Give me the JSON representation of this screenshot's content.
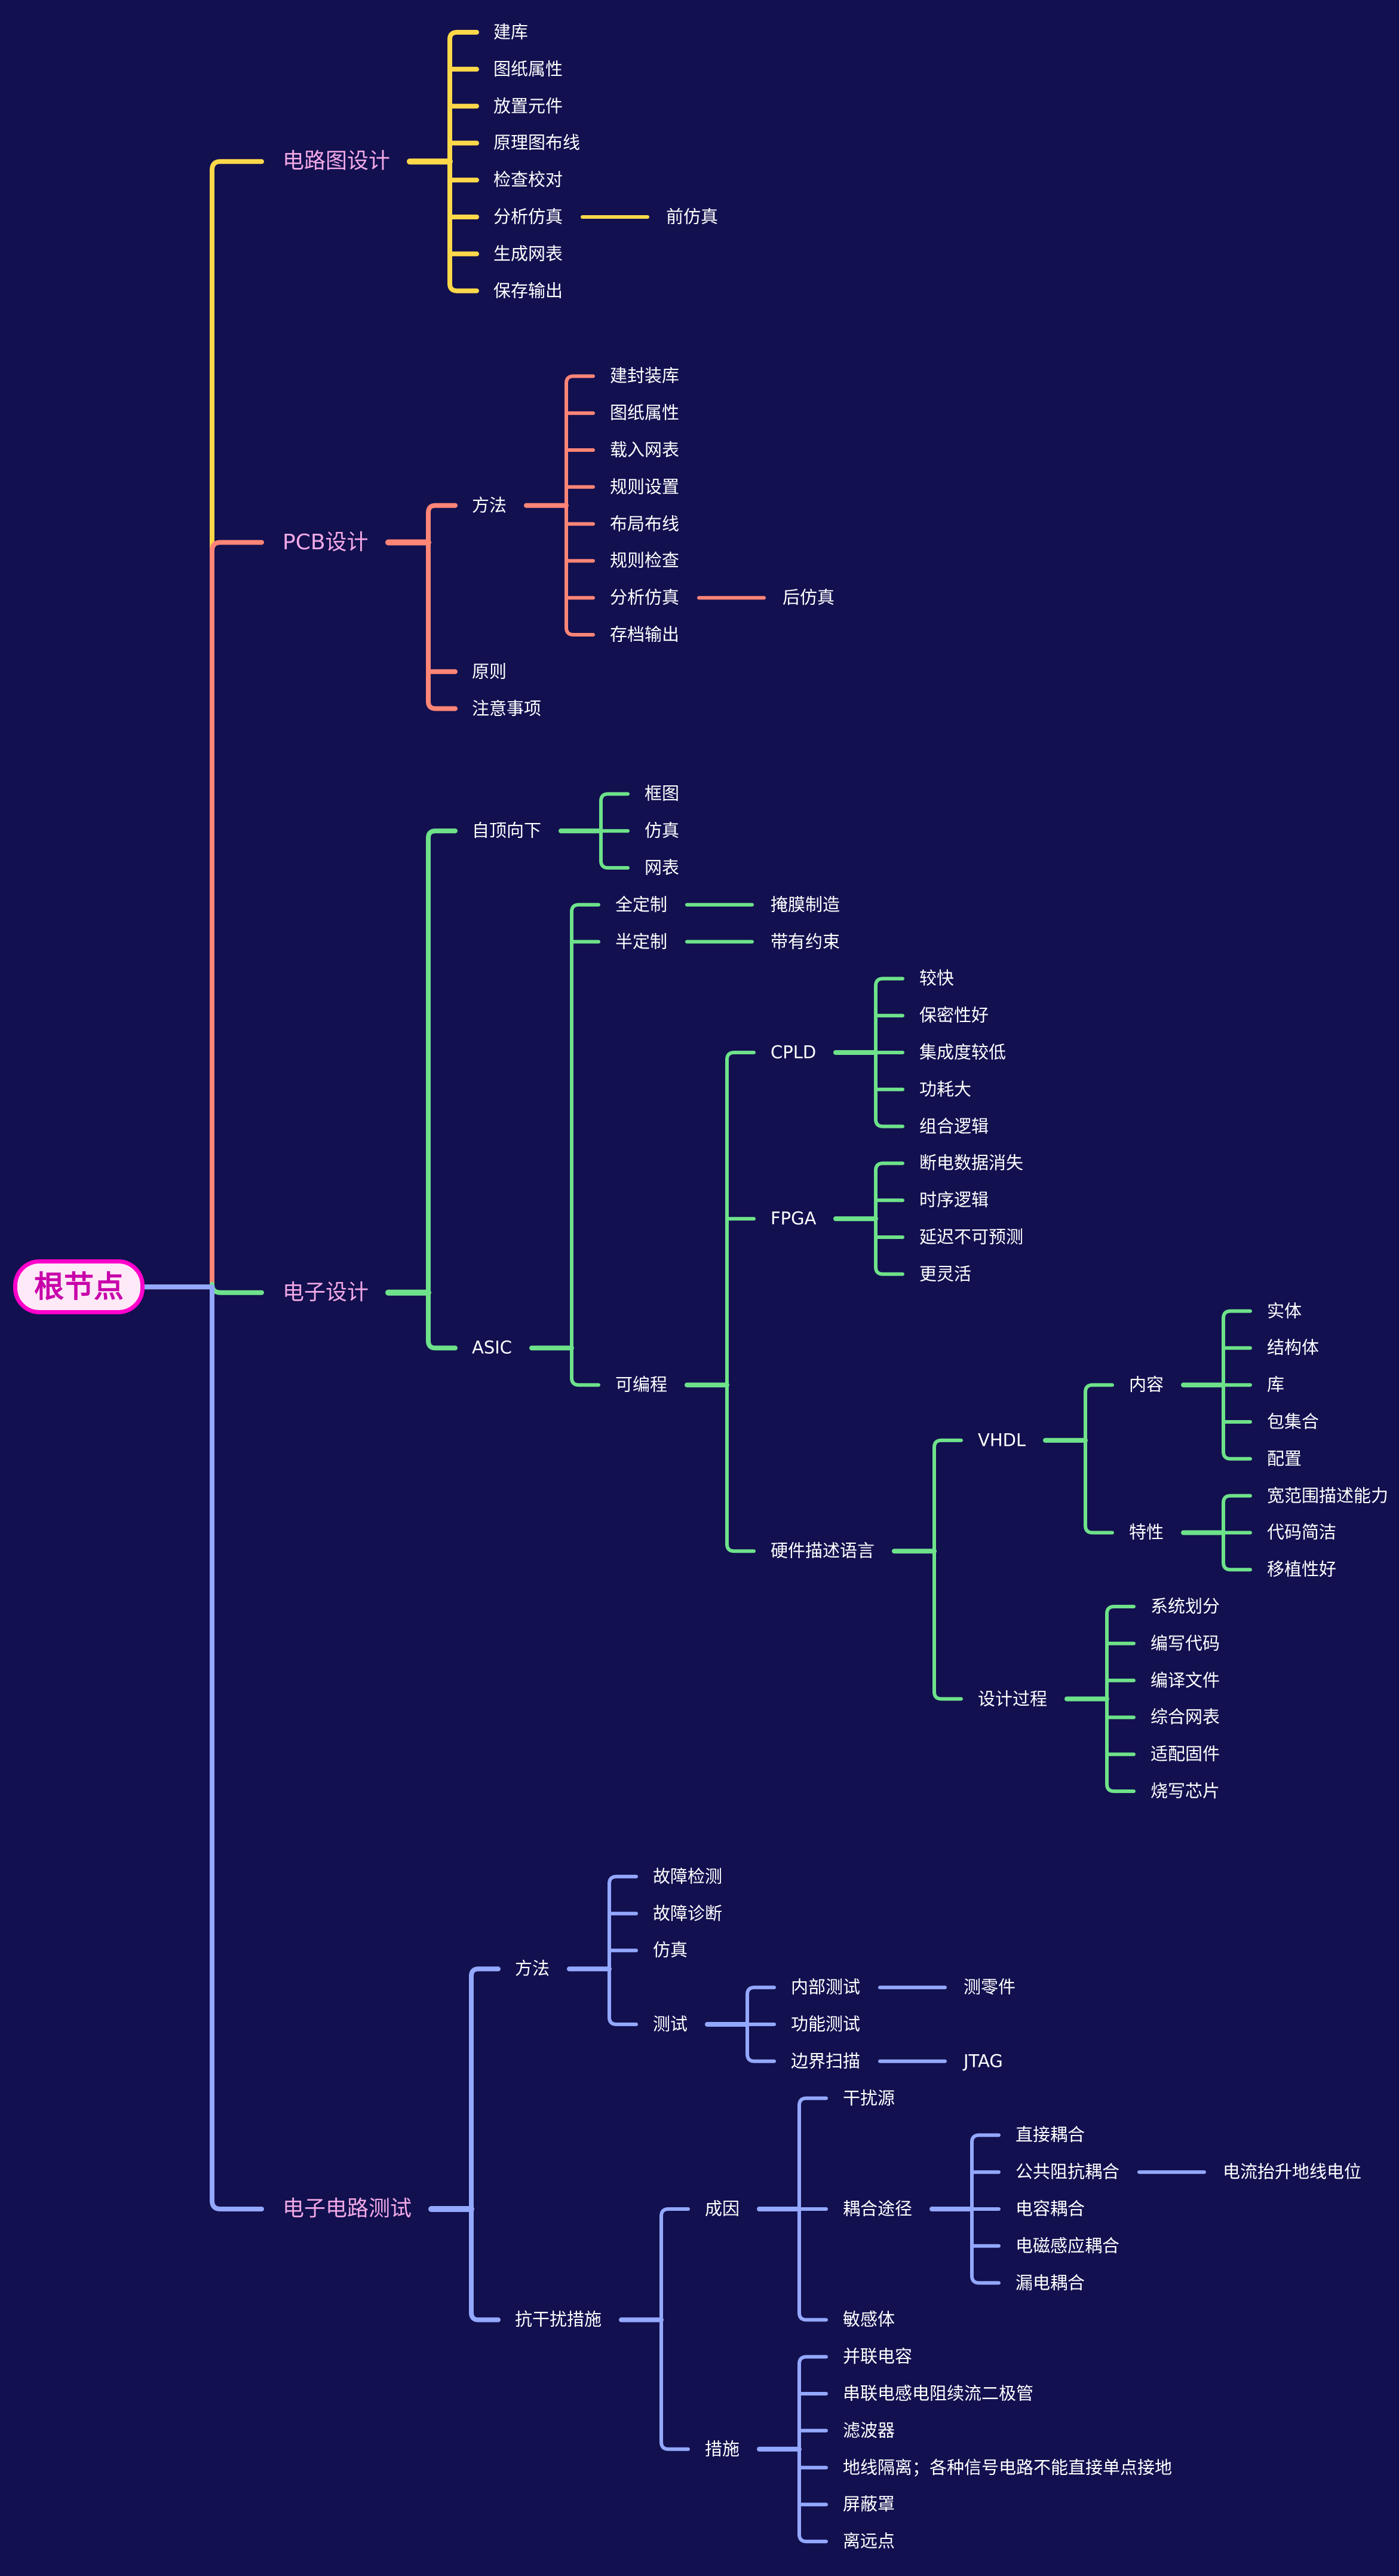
{
  "background": "#12104f",
  "root_colors": {
    "fill": "#fde9f7",
    "border": "#ff00cc",
    "text": "#c800aa"
  },
  "tree": {
    "label": "根节点",
    "children": [
      {
        "label": "电路图设计",
        "color": "#ffd84a",
        "children": [
          {
            "label": "建库"
          },
          {
            "label": "图纸属性"
          },
          {
            "label": "放置元件"
          },
          {
            "label": "原理图布线"
          },
          {
            "label": "检查校对"
          },
          {
            "label": "分析仿真",
            "children": [
              {
                "label": "前仿真"
              }
            ]
          },
          {
            "label": "生成网表"
          },
          {
            "label": "保存输出"
          }
        ]
      },
      {
        "label": "PCB设计",
        "color": "#ff8577",
        "children": [
          {
            "label": "方法",
            "children": [
              {
                "label": "建封装库"
              },
              {
                "label": "图纸属性"
              },
              {
                "label": "载入网表"
              },
              {
                "label": "规则设置"
              },
              {
                "label": "布局布线"
              },
              {
                "label": "规则检查"
              },
              {
                "label": "分析仿真",
                "children": [
                  {
                    "label": "后仿真"
                  }
                ]
              },
              {
                "label": "存档输出"
              }
            ]
          },
          {
            "label": "原则"
          },
          {
            "label": "注意事项"
          }
        ]
      },
      {
        "label": "电子设计",
        "color": "#6ee28a",
        "children": [
          {
            "label": "自顶向下",
            "children": [
              {
                "label": "框图"
              },
              {
                "label": "仿真"
              },
              {
                "label": "网表"
              }
            ]
          },
          {
            "label": "ASIC",
            "children": [
              {
                "label": "全定制",
                "children": [
                  {
                    "label": "掩膜制造"
                  }
                ]
              },
              {
                "label": "半定制",
                "children": [
                  {
                    "label": "带有约束"
                  }
                ]
              },
              {
                "label": "可编程",
                "children": [
                  {
                    "label": "CPLD",
                    "children": [
                      {
                        "label": "较快"
                      },
                      {
                        "label": "保密性好"
                      },
                      {
                        "label": "集成度较低"
                      },
                      {
                        "label": "功耗大"
                      },
                      {
                        "label": "组合逻辑"
                      }
                    ]
                  },
                  {
                    "label": "FPGA",
                    "children": [
                      {
                        "label": "断电数据消失"
                      },
                      {
                        "label": "时序逻辑"
                      },
                      {
                        "label": "延迟不可预测"
                      },
                      {
                        "label": "更灵活"
                      }
                    ]
                  },
                  {
                    "label": "硬件描述语言",
                    "children": [
                      {
                        "label": "VHDL",
                        "children": [
                          {
                            "label": "内容",
                            "children": [
                              {
                                "label": "实体"
                              },
                              {
                                "label": "结构体"
                              },
                              {
                                "label": "库"
                              },
                              {
                                "label": "包集合"
                              },
                              {
                                "label": "配置"
                              }
                            ]
                          },
                          {
                            "label": "特性",
                            "children": [
                              {
                                "label": "宽范围描述能力"
                              },
                              {
                                "label": "代码简洁"
                              },
                              {
                                "label": "移植性好"
                              }
                            ]
                          }
                        ]
                      },
                      {
                        "label": "设计过程",
                        "children": [
                          {
                            "label": "系统划分"
                          },
                          {
                            "label": "编写代码"
                          },
                          {
                            "label": "编译文件"
                          },
                          {
                            "label": "综合网表"
                          },
                          {
                            "label": "适配固件"
                          },
                          {
                            "label": "烧写芯片"
                          }
                        ]
                      }
                    ]
                  }
                ]
              }
            ]
          }
        ]
      },
      {
        "label": "电子电路测试",
        "color": "#94a8ff",
        "children": [
          {
            "label": "方法",
            "children": [
              {
                "label": "故障检测"
              },
              {
                "label": "故障诊断"
              },
              {
                "label": "仿真"
              },
              {
                "label": "测试",
                "children": [
                  {
                    "label": "内部测试",
                    "children": [
                      {
                        "label": "测零件"
                      }
                    ]
                  },
                  {
                    "label": "功能测试"
                  },
                  {
                    "label": "边界扫描",
                    "children": [
                      {
                        "label": "JTAG"
                      }
                    ]
                  }
                ]
              }
            ]
          },
          {
            "label": "抗干扰措施",
            "children": [
              {
                "label": "成因",
                "children": [
                  {
                    "label": "干扰源"
                  },
                  {
                    "label": "耦合途径",
                    "children": [
                      {
                        "label": "直接耦合"
                      },
                      {
                        "label": "公共阻抗耦合",
                        "children": [
                          {
                            "label": "电流抬升地线电位"
                          }
                        ]
                      },
                      {
                        "label": "电容耦合"
                      },
                      {
                        "label": "电磁感应耦合"
                      },
                      {
                        "label": "漏电耦合"
                      }
                    ]
                  },
                  {
                    "label": "敏感体"
                  }
                ]
              },
              {
                "label": "措施",
                "children": [
                  {
                    "label": "并联电容"
                  },
                  {
                    "label": "串联电感电阻续流二极管"
                  },
                  {
                    "label": "滤波器"
                  },
                  {
                    "label": "地线隔离；各种信号电路不能直接单点接地"
                  },
                  {
                    "label": "屏蔽罩"
                  },
                  {
                    "label": "离远点"
                  }
                ]
              }
            ]
          }
        ]
      }
    ]
  }
}
